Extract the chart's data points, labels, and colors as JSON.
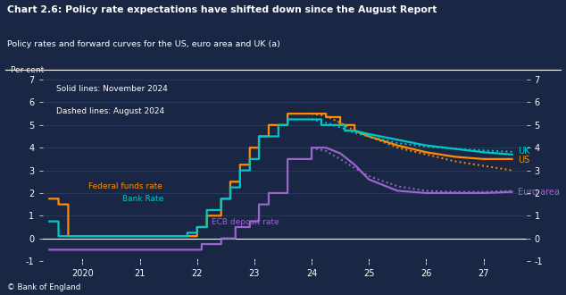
{
  "title": "Chart 2.6: Policy rate expectations have shifted down since the August Report",
  "subtitle": "Policy rates and forward curves for the US, euro area and UK (a)",
  "footer": "© Bank of England",
  "ylabel": "Per cent",
  "bg_color": "#1a2744",
  "text_color": "#ffffff",
  "grid_color": "#2d3f6c",
  "ylim": [
    -1,
    7
  ],
  "yticks": [
    -1,
    0,
    1,
    2,
    3,
    4,
    5,
    6,
    7
  ],
  "legend_text1": "Solid lines: November 2024",
  "legend_text2": "Dashed lines: August 2024",
  "uk_nov_x": [
    2019.42,
    2019.58,
    2019.58,
    2019.92,
    2019.92,
    2020.17,
    2020.17,
    2021.83,
    2021.83,
    2022.0,
    2022.0,
    2022.17,
    2022.17,
    2022.42,
    2022.42,
    2022.58,
    2022.58,
    2022.75,
    2022.75,
    2022.92,
    2022.92,
    2023.08,
    2023.08,
    2023.42,
    2023.42,
    2023.58,
    2023.58,
    2024.0,
    2024.0,
    2024.17,
    2024.17,
    2024.58,
    2024.58,
    2024.75,
    2024.75,
    2025.0,
    2025.5,
    2026.0,
    2026.5,
    2027.0,
    2027.5
  ],
  "uk_nov_y": [
    0.75,
    0.75,
    0.1,
    0.1,
    0.1,
    0.1,
    0.1,
    0.1,
    0.25,
    0.25,
    0.5,
    0.5,
    1.25,
    1.25,
    1.75,
    1.75,
    2.25,
    2.25,
    3.0,
    3.0,
    3.5,
    3.5,
    4.5,
    4.5,
    5.0,
    5.0,
    5.25,
    5.25,
    5.25,
    5.25,
    5.0,
    5.0,
    4.75,
    4.75,
    4.75,
    4.6,
    4.35,
    4.1,
    3.95,
    3.8,
    3.7
  ],
  "uk_aug_x": [
    2024.0,
    2024.25,
    2024.5,
    2024.75,
    2025.0,
    2025.5,
    2026.0,
    2026.5,
    2027.0,
    2027.5
  ],
  "uk_aug_y": [
    5.25,
    5.1,
    4.9,
    4.65,
    4.5,
    4.2,
    4.05,
    3.95,
    3.88,
    3.82
  ],
  "us_nov_x": [
    2019.42,
    2019.58,
    2019.58,
    2019.75,
    2019.75,
    2020.0,
    2020.0,
    2022.0,
    2022.0,
    2022.17,
    2022.17,
    2022.42,
    2022.42,
    2022.58,
    2022.58,
    2022.75,
    2022.75,
    2022.92,
    2022.92,
    2023.08,
    2023.08,
    2023.25,
    2023.25,
    2023.58,
    2023.58,
    2024.0,
    2024.0,
    2024.25,
    2024.25,
    2024.5,
    2024.5,
    2024.75,
    2024.75,
    2025.0,
    2025.5,
    2026.0,
    2026.5,
    2027.0,
    2027.5
  ],
  "us_nov_y": [
    1.75,
    1.75,
    1.5,
    1.5,
    0.1,
    0.1,
    0.1,
    0.1,
    0.5,
    0.5,
    1.0,
    1.0,
    1.75,
    1.75,
    2.5,
    2.5,
    3.25,
    3.25,
    4.0,
    4.0,
    4.5,
    4.5,
    5.0,
    5.0,
    5.5,
    5.5,
    5.5,
    5.5,
    5.35,
    5.35,
    5.0,
    5.0,
    4.75,
    4.5,
    4.1,
    3.8,
    3.6,
    3.5,
    3.5
  ],
  "us_aug_x": [
    2024.0,
    2024.25,
    2024.5,
    2024.75,
    2025.0,
    2025.5,
    2026.0,
    2026.5,
    2027.0,
    2027.5
  ],
  "us_aug_y": [
    5.5,
    5.4,
    5.1,
    4.75,
    4.5,
    4.0,
    3.7,
    3.4,
    3.2,
    3.0
  ],
  "eu_nov_x": [
    2019.42,
    2022.08,
    2022.08,
    2022.42,
    2022.42,
    2022.67,
    2022.67,
    2022.92,
    2022.92,
    2023.08,
    2023.08,
    2023.25,
    2023.25,
    2023.58,
    2023.58,
    2024.0,
    2024.0,
    2024.25,
    2024.5,
    2024.75,
    2025.0,
    2025.5,
    2026.0,
    2026.5,
    2027.0,
    2027.5
  ],
  "eu_nov_y": [
    -0.5,
    -0.5,
    -0.25,
    -0.25,
    0.0,
    0.0,
    0.5,
    0.5,
    0.75,
    0.75,
    1.5,
    1.5,
    2.0,
    2.0,
    3.5,
    3.5,
    4.0,
    4.0,
    3.75,
    3.25,
    2.6,
    2.1,
    2.0,
    2.0,
    2.0,
    2.05
  ],
  "eu_aug_x": [
    2024.0,
    2024.25,
    2024.5,
    2024.75,
    2025.0,
    2025.5,
    2026.0,
    2026.5,
    2027.0,
    2027.5
  ],
  "eu_aug_y": [
    4.0,
    3.85,
    3.5,
    3.1,
    2.75,
    2.3,
    2.1,
    2.05,
    2.05,
    2.1
  ],
  "color_uk": "#00c8c8",
  "color_us": "#ff8c00",
  "color_eu": "#9966cc",
  "xticks": [
    2020,
    2021,
    2022,
    2023,
    2024,
    2025,
    2026,
    2027
  ],
  "xticklabels": [
    "2020",
    "21",
    "22",
    "23",
    "24",
    "25",
    "26",
    "27"
  ]
}
